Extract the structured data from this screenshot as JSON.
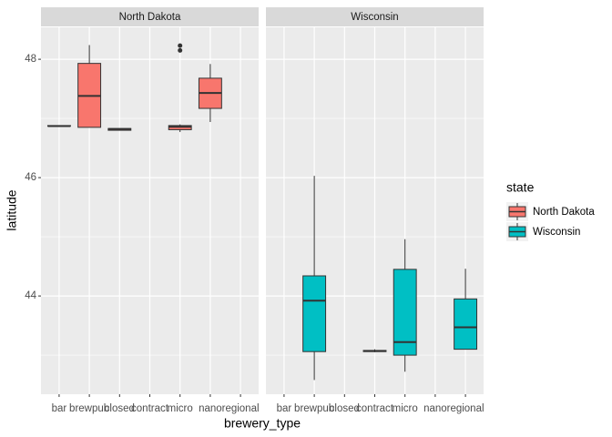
{
  "chart_data": {
    "type": "boxplot",
    "xlabel": "brewery_type",
    "ylabel": "latitude",
    "legend_title": "state",
    "categories": [
      "bar",
      "brewpub",
      "closed",
      "contract",
      "micro",
      "nano",
      "regional"
    ],
    "ylim": [
      42.34,
      48.54
    ],
    "yticks": [
      44,
      46,
      48
    ],
    "grid": true,
    "series": [
      {
        "name": "North Dakota",
        "color": "#F8766D",
        "boxes": [
          {
            "category": "bar",
            "min": 46.87,
            "q1": 46.87,
            "median": 46.87,
            "q3": 46.88,
            "max": 46.88,
            "outliers": []
          },
          {
            "category": "brewpub",
            "min": 46.85,
            "q1": 46.85,
            "median": 47.38,
            "q3": 47.93,
            "max": 48.24,
            "outliers": []
          },
          {
            "category": "closed",
            "min": 46.8,
            "q1": 46.8,
            "median": 46.82,
            "q3": 46.83,
            "max": 46.83,
            "outliers": []
          },
          {
            "category": "micro",
            "min": 46.77,
            "q1": 46.81,
            "median": 46.86,
            "q3": 46.88,
            "max": 46.9,
            "outliers": [
              48.23,
              48.15
            ]
          },
          {
            "category": "nano",
            "min": 46.94,
            "q1": 47.17,
            "median": 47.43,
            "q3": 47.68,
            "max": 47.92,
            "outliers": []
          }
        ]
      },
      {
        "name": "Wisconsin",
        "color": "#00BFC4",
        "boxes": [
          {
            "category": "brewpub",
            "min": 42.58,
            "q1": 43.06,
            "median": 43.92,
            "q3": 44.34,
            "max": 46.03,
            "outliers": []
          },
          {
            "category": "contract",
            "min": 43.05,
            "q1": 43.06,
            "median": 43.07,
            "q3": 43.08,
            "max": 43.1,
            "outliers": []
          },
          {
            "category": "micro",
            "min": 42.72,
            "q1": 43.0,
            "median": 43.22,
            "q3": 44.45,
            "max": 44.96,
            "outliers": []
          },
          {
            "category": "regional",
            "min": 43.1,
            "q1": 43.1,
            "median": 43.47,
            "q3": 43.95,
            "max": 44.46,
            "outliers": []
          }
        ]
      }
    ]
  }
}
